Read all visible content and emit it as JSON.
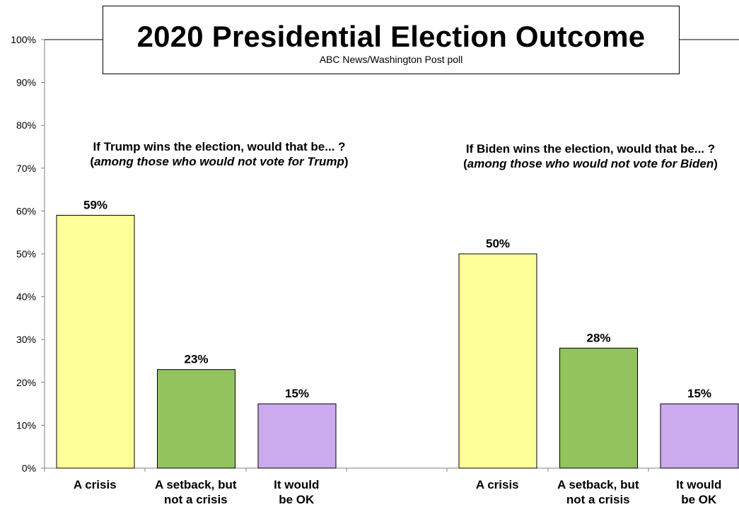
{
  "title": "2020 Presidential Election Outcome",
  "subtitle": "ABC News/Washington  Post poll",
  "questions": [
    {
      "line1": "If Trump wins the election, would that be... ?",
      "open": "(",
      "note": "among those who would not vote for Trump",
      "close": ")"
    },
    {
      "line1": "If Biden wins the election, would that be... ?",
      "open": "(",
      "note": "among those who would not vote for Biden",
      "close": ")"
    }
  ],
  "colors": {
    "crisis": "#ffff99",
    "setback": "#92c35e",
    "ok": "#ccaaee",
    "axis": "#808080"
  },
  "chart_data": {
    "type": "bar",
    "ylim": [
      0,
      100
    ],
    "y_ticks": [
      "0%",
      "10%",
      "20%",
      "30%",
      "40%",
      "50%",
      "60%",
      "70%",
      "80%",
      "90%",
      "100%"
    ],
    "groups": [
      {
        "categories": [
          [
            "A crisis"
          ],
          [
            "A setback, but",
            "not a crisis"
          ],
          [
            "It would",
            "be OK"
          ]
        ],
        "values": [
          59,
          23,
          15
        ],
        "labels": [
          "59%",
          "23%",
          "15%"
        ]
      },
      {
        "categories": [
          [
            "A crisis"
          ],
          [
            "A setback, but",
            "not a crisis"
          ],
          [
            "It would",
            "be OK"
          ]
        ],
        "values": [
          50,
          28,
          15
        ],
        "labels": [
          "50%",
          "28%",
          "15%"
        ]
      }
    ]
  }
}
